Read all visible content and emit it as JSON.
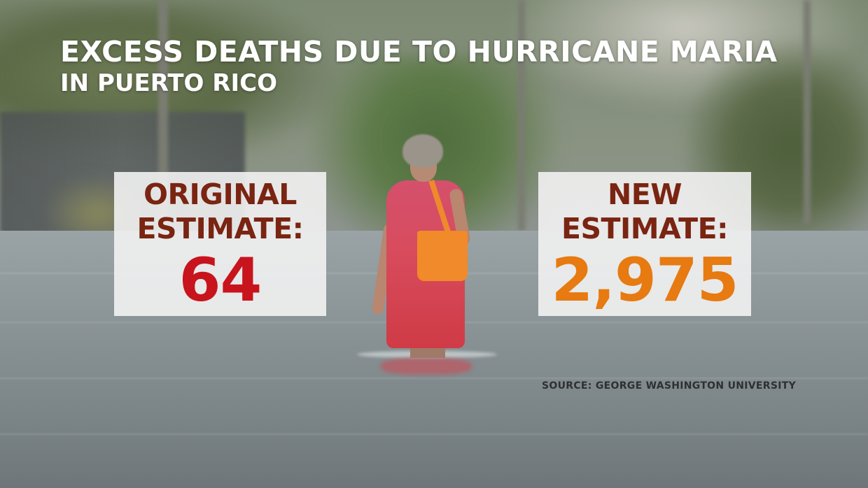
{
  "headline": "EXCESS DEATHS DUE TO HURRICANE MARIA",
  "subheadline": "IN PUERTO RICO",
  "original": {
    "label_line1": "ORIGINAL",
    "label_line2": "ESTIMATE:",
    "value": "64",
    "color": "#c8141c"
  },
  "new": {
    "label_line1": "NEW",
    "label_line2": "ESTIMATE:",
    "value": "2,975",
    "color": "#e77a10"
  },
  "label_color": "#7a2412",
  "source": "SOURCE: GEORGE WASHINGTON UNIVERSITY"
}
